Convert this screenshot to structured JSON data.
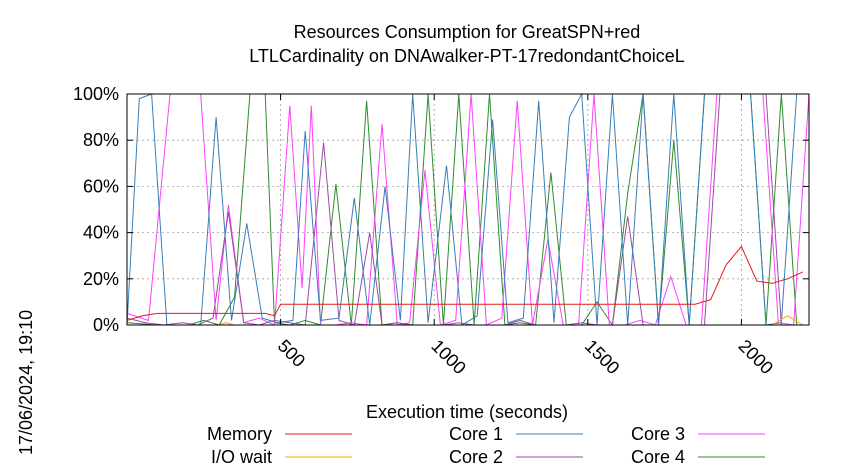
{
  "chart_data": {
    "type": "line",
    "title": "Resources Consumption for GreatSPN+red",
    "subtitle": "LTLCardinality on DNAwalker-PT-17redondantChoiceL",
    "xlabel": "Execution time (seconds)",
    "ylabel": "",
    "side_label": "17/06/2024, 19:10",
    "xlim": [
      0,
      2220
    ],
    "ylim": [
      0,
      100
    ],
    "x_ticks": [
      500,
      1000,
      1500,
      2000
    ],
    "y_ticks": [
      0,
      20,
      40,
      60,
      80,
      100
    ],
    "y_tick_labels": [
      "0%",
      "20%",
      "40%",
      "60%",
      "80%",
      "100%"
    ],
    "grid": true,
    "legend_position": "bottom",
    "series": [
      {
        "name": "Memory",
        "color": "#e41a1c",
        "x": [
          0,
          50,
          100,
          150,
          200,
          250,
          300,
          350,
          400,
          450,
          480,
          500,
          600,
          700,
          800,
          900,
          1000,
          1100,
          1200,
          1300,
          1400,
          1500,
          1600,
          1700,
          1800,
          1850,
          1900,
          1950,
          2000,
          2050,
          2100,
          2150,
          2200
        ],
        "y": [
          2,
          4,
          5,
          5,
          5,
          5,
          5,
          5,
          5,
          5,
          4,
          9,
          9,
          9,
          9,
          9,
          9,
          9,
          9,
          9,
          9,
          9,
          9,
          9,
          9,
          9,
          11,
          26,
          34,
          19,
          18,
          20,
          23
        ]
      },
      {
        "name": "I/O wait",
        "color": "#ffa500",
        "x": [
          0,
          100,
          200,
          300,
          320,
          350,
          400,
          500,
          600,
          700,
          800,
          900,
          1000,
          1100,
          1200,
          1300,
          1400,
          1500,
          1600,
          1700,
          1800,
          1900,
          2000,
          2100,
          2150,
          2200
        ],
        "y": [
          0,
          0,
          0,
          0,
          1,
          0,
          0,
          0,
          0,
          0,
          0,
          0,
          0,
          0,
          0,
          0,
          0,
          0,
          0,
          0,
          0,
          0,
          0,
          0,
          4,
          0
        ]
      },
      {
        "name": "Core 1",
        "color": "#377eb8",
        "x": [
          0,
          40,
          80,
          130,
          240,
          290,
          340,
          390,
          440,
          490,
          540,
          580,
          630,
          690,
          740,
          790,
          840,
          890,
          930,
          980,
          1040,
          1090,
          1140,
          1190,
          1240,
          1290,
          1340,
          1390,
          1440,
          1480,
          1530,
          1580,
          1630,
          1680,
          1730,
          1780,
          1830,
          1880,
          1930,
          1980,
          2030,
          2080,
          2130,
          2180,
          2220
        ],
        "y": [
          0,
          98,
          100,
          0,
          0,
          90,
          2,
          44,
          3,
          1,
          2,
          84,
          2,
          3,
          55,
          0,
          60,
          2,
          100,
          1,
          69,
          0,
          4,
          89,
          1,
          3,
          97,
          1,
          90,
          100,
          0,
          100,
          0,
          100,
          0,
          100,
          0,
          100,
          100,
          100,
          100,
          0,
          1,
          100,
          100
        ]
      },
      {
        "name": "Core 2",
        "color": "#984ea3",
        "x": [
          0,
          60,
          120,
          180,
          230,
          280,
          330,
          380,
          430,
          480,
          530,
          580,
          640,
          690,
          740,
          790,
          830,
          880,
          930,
          980,
          1030,
          1080,
          1130,
          1180,
          1230,
          1280,
          1330,
          1380,
          1430,
          1480,
          1530,
          1580,
          1630,
          1680,
          1730,
          1780,
          1830,
          1880,
          1930,
          1980,
          2030,
          2080,
          2130,
          2180,
          2220
        ],
        "y": [
          3,
          1,
          0,
          1,
          0,
          3,
          49,
          1,
          0,
          2,
          1,
          0,
          79,
          2,
          0,
          40,
          0,
          1,
          0,
          0,
          0,
          1,
          0,
          0,
          0,
          2,
          0,
          0,
          0,
          1,
          0,
          0,
          47,
          0,
          0,
          0,
          0,
          0,
          100,
          100,
          100,
          100,
          0,
          0,
          0
        ]
      },
      {
        "name": "Core 3",
        "color": "#ff40ff",
        "x": [
          0,
          70,
          140,
          200,
          240,
          290,
          330,
          380,
          430,
          480,
          530,
          570,
          600,
          630,
          680,
          730,
          780,
          830,
          880,
          920,
          970,
          1020,
          1070,
          1120,
          1170,
          1220,
          1270,
          1320,
          1370,
          1420,
          1470,
          1520,
          1570,
          1620,
          1670,
          1720,
          1770,
          1820,
          1870,
          1920,
          1970,
          2020,
          2070,
          2120,
          2170,
          2220
        ],
        "y": [
          5,
          2,
          100,
          100,
          100,
          2,
          52,
          1,
          3,
          0,
          95,
          16,
          95,
          0,
          0,
          1,
          0,
          87,
          0,
          1,
          67,
          0,
          2,
          100,
          0,
          3,
          97,
          0,
          37,
          0,
          0,
          100,
          0,
          0,
          2,
          0,
          21,
          0,
          0,
          100,
          100,
          100,
          100,
          1,
          0,
          100
        ]
      },
      {
        "name": "Core 4",
        "color": "#2e8b2e",
        "x": [
          0,
          100,
          200,
          250,
          300,
          350,
          400,
          450,
          480,
          530,
          580,
          630,
          680,
          730,
          780,
          830,
          880,
          930,
          980,
          1030,
          1080,
          1130,
          1180,
          1230,
          1280,
          1330,
          1380,
          1430,
          1480,
          1530,
          1580,
          1630,
          1680,
          1730,
          1780,
          1830,
          1880,
          1930,
          1980,
          2030,
          2080,
          2130,
          2180,
          2220
        ],
        "y": [
          1,
          0,
          0,
          2,
          0,
          12,
          100,
          100,
          1,
          0,
          2,
          0,
          61,
          0,
          97,
          0,
          1,
          0,
          100,
          0,
          100,
          0,
          100,
          0,
          1,
          0,
          66,
          0,
          0,
          10,
          0,
          57,
          100,
          0,
          80,
          0,
          100,
          100,
          100,
          100,
          0,
          100,
          0,
          0
        ]
      }
    ]
  }
}
